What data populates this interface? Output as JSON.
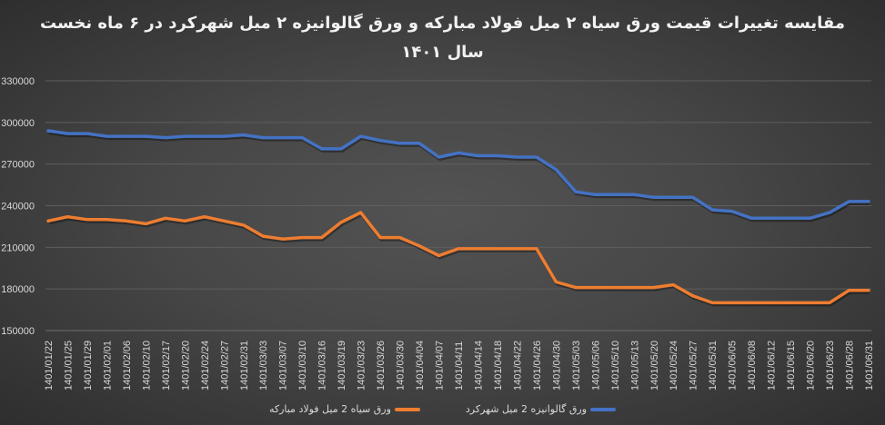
{
  "title_line1": "مقایسه تغییرات قیمت ورق سیاه ۲ میل فولاد مبارکه و ورق گالوانیزه ۲ میل شهرکرد در ۶ ماه نخست",
  "title_line2": "سال ۱۴۰۱",
  "chart_data": {
    "type": "line",
    "title": "مقایسه تغییرات قیمت ورق سیاه ۲ میل فولاد مبارکه و ورق گالوانیزه ۲ میل شهرکرد در ۶ ماه نخست سال ۱۴۰۱",
    "xlabel": "",
    "ylabel": "",
    "ylim": [
      150000,
      330000
    ],
    "yticks": [
      150000,
      180000,
      210000,
      240000,
      270000,
      300000,
      330000
    ],
    "grid": true,
    "legend_position": "bottom",
    "categories": [
      "1401/01/22",
      "1401/01/25",
      "1401/01/29",
      "1401/02/01",
      "1401/02/06",
      "1401/02/10",
      "1401/02/17",
      "1401/02/20",
      "1401/02/24",
      "1401/02/27",
      "1401/02/31",
      "1401/03/03",
      "1401/03/07",
      "1401/03/10",
      "1401/03/16",
      "1401/03/19",
      "1401/03/23",
      "1401/03/26",
      "1401/03/30",
      "1401/04/04",
      "1401/04/07",
      "1401/04/11",
      "1401/04/14",
      "1401/04/18",
      "1401/04/22",
      "1401/04/26",
      "1401/04/30",
      "1401/05/03",
      "1401/05/06",
      "1401/05/10",
      "1401/05/13",
      "1401/05/20",
      "1401/05/24",
      "1401/05/27",
      "1401/05/31",
      "1401/06/05",
      "1401/06/08",
      "1401/06/12",
      "1401/06/15",
      "1401/06/20",
      "1401/06/23",
      "1401/06/28",
      "1401/06/31"
    ],
    "series": [
      {
        "name": "ورق گالوانیزه 2 میل شهرکرد",
        "color": "#4472C4",
        "values": [
          294000,
          292000,
          292000,
          290000,
          290000,
          290000,
          289000,
          290000,
          290000,
          290000,
          291000,
          289000,
          289000,
          289000,
          281000,
          281000,
          290000,
          287000,
          285000,
          285000,
          275000,
          278000,
          276000,
          276000,
          275000,
          275000,
          266000,
          250000,
          248000,
          248000,
          248000,
          246000,
          246000,
          246000,
          237000,
          236000,
          231000,
          231000,
          231000,
          231000,
          235000,
          243000,
          243000
        ]
      },
      {
        "name": "ورق سیاه 2 میل فولاد مبارکه",
        "color": "#ED7D31",
        "values": [
          229000,
          232000,
          230000,
          230000,
          229000,
          227000,
          231000,
          229000,
          232000,
          229000,
          226000,
          218000,
          216000,
          217000,
          217000,
          228000,
          235000,
          217000,
          217000,
          211000,
          204000,
          209000,
          209000,
          209000,
          209000,
          209000,
          185000,
          181000,
          181000,
          181000,
          181000,
          181000,
          183000,
          175000,
          170000,
          170000,
          170000,
          170000,
          170000,
          170000,
          170000,
          179000,
          179000
        ]
      }
    ]
  }
}
